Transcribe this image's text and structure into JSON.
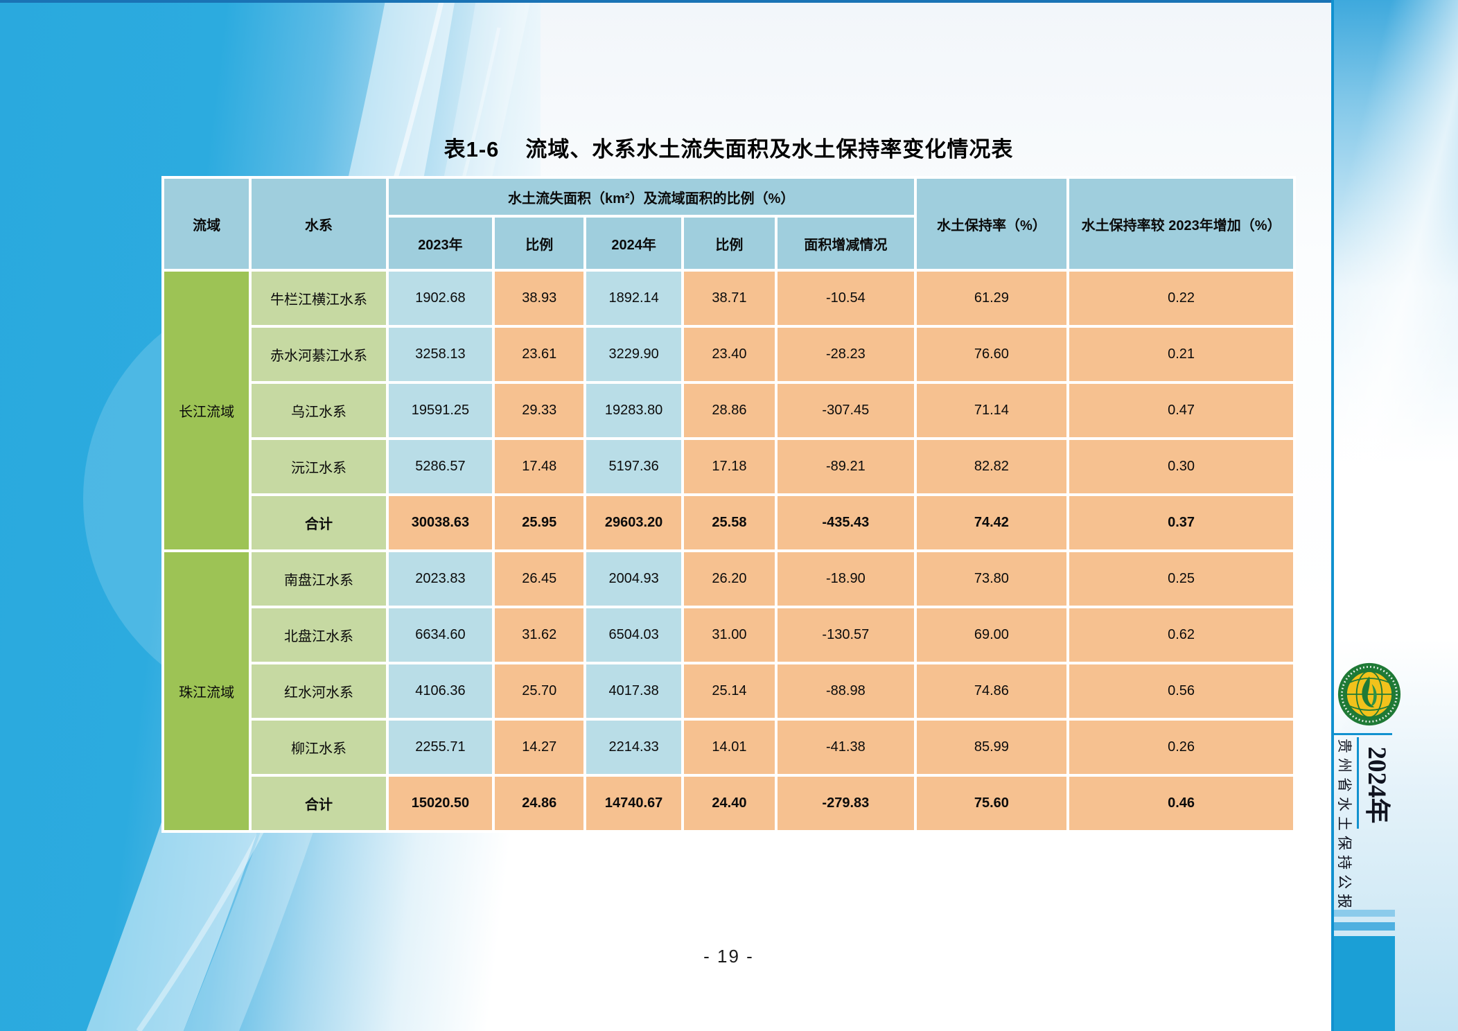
{
  "page": {
    "title_no": "表1-6",
    "title": "流域、水系水土流失面积及水土保持率变化情况表",
    "page_number": "- 19 -"
  },
  "sidebar": {
    "year": "2024年",
    "bulletin": "贵州省水土保持公报",
    "logo": "china-soil-water-conservation-emblem"
  },
  "table": {
    "headers": {
      "basin": "流域",
      "system": "水系",
      "span_header": "水土流失面积（km²）及流域面积的比例（%）",
      "y2023": "2023年",
      "ratio1": "比例",
      "y2024": "2024年",
      "ratio2": "比例",
      "change": "面积增减情况",
      "retention": "水土保持率（%）",
      "retention_increase": "水土保持率较 2023年增加（%）"
    },
    "groups": [
      {
        "basin": "长江流域",
        "rows": [
          {
            "system": "牛栏江横江水系",
            "a2023": "1902.68",
            "r2023": "38.93",
            "a2024": "1892.14",
            "r2024": "38.71",
            "change": "-10.54",
            "retention": "61.29",
            "increase": "0.22",
            "is_total": false
          },
          {
            "system": "赤水河綦江水系",
            "a2023": "3258.13",
            "r2023": "23.61",
            "a2024": "3229.90",
            "r2024": "23.40",
            "change": "-28.23",
            "retention": "76.60",
            "increase": "0.21",
            "is_total": false
          },
          {
            "system": "乌江水系",
            "a2023": "19591.25",
            "r2023": "29.33",
            "a2024": "19283.80",
            "r2024": "28.86",
            "change": "-307.45",
            "retention": "71.14",
            "increase": "0.47",
            "is_total": false
          },
          {
            "system": "沅江水系",
            "a2023": "5286.57",
            "r2023": "17.48",
            "a2024": "5197.36",
            "r2024": "17.18",
            "change": "-89.21",
            "retention": "82.82",
            "increase": "0.30",
            "is_total": false
          },
          {
            "system": "合计",
            "a2023": "30038.63",
            "r2023": "25.95",
            "a2024": "29603.20",
            "r2024": "25.58",
            "change": "-435.43",
            "retention": "74.42",
            "increase": "0.37",
            "is_total": true
          }
        ]
      },
      {
        "basin": "珠江流域",
        "rows": [
          {
            "system": "南盘江水系",
            "a2023": "2023.83",
            "r2023": "26.45",
            "a2024": "2004.93",
            "r2024": "26.20",
            "change": "-18.90",
            "retention": "73.80",
            "increase": "0.25",
            "is_total": false
          },
          {
            "system": "北盘江水系",
            "a2023": "6634.60",
            "r2023": "31.62",
            "a2024": "6504.03",
            "r2024": "31.00",
            "change": "-130.57",
            "retention": "69.00",
            "increase": "0.62",
            "is_total": false
          },
          {
            "system": "红水河水系",
            "a2023": "4106.36",
            "r2023": "25.70",
            "a2024": "4017.38",
            "r2024": "25.14",
            "change": "-88.98",
            "retention": "74.86",
            "increase": "0.56",
            "is_total": false
          },
          {
            "system": "柳江水系",
            "a2023": "2255.71",
            "r2023": "14.27",
            "a2024": "2214.33",
            "r2024": "14.01",
            "change": "-41.38",
            "retention": "85.99",
            "increase": "0.26",
            "is_total": false
          },
          {
            "system": "合计",
            "a2023": "15020.50",
            "r2023": "24.86",
            "a2024": "14740.67",
            "r2024": "24.40",
            "change": "-279.83",
            "retention": "75.60",
            "increase": "0.46",
            "is_total": true
          }
        ]
      }
    ]
  },
  "colors": {
    "accent_blue": "#1191cf",
    "top_line": "#1a73b5",
    "deco_blue": "#2aa9de",
    "block_blue": "#1b9fd6",
    "stripe_light": "#8ccbeb",
    "stripe_mid": "#4fb0e0",
    "header_bg": "#9fcedd",
    "basin_bg": "#9dc355",
    "system_bg": "#c6d9a2",
    "area_bg": "#b9dde7",
    "ratio_bg": "#f6c190",
    "text": "#111111"
  }
}
